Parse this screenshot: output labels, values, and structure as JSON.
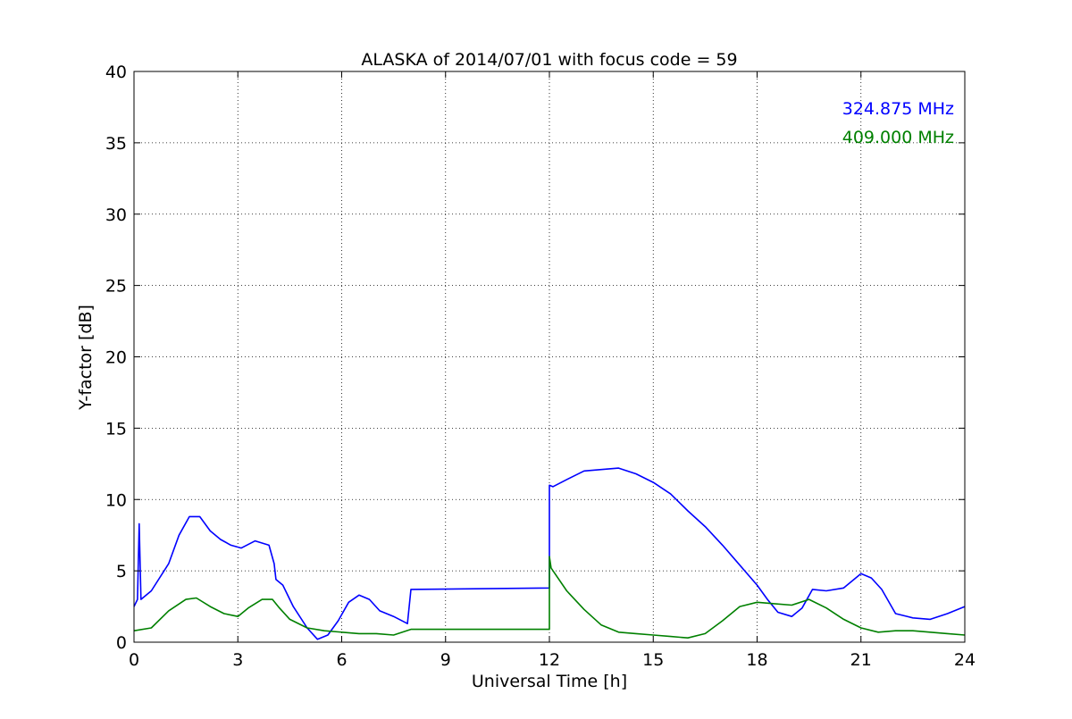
{
  "chart_data": {
    "type": "line",
    "title": "ALASKA of 2014/07/01 with focus code = 59",
    "xlabel": "Universal Time [h]",
    "ylabel": "Y-factor [dB]",
    "xlim": [
      0,
      24
    ],
    "ylim": [
      0,
      40
    ],
    "xticks": [
      "0",
      "3",
      "6",
      "9",
      "12",
      "15",
      "18",
      "21",
      "24"
    ],
    "yticks": [
      "0",
      "5",
      "10",
      "15",
      "20",
      "25",
      "30",
      "35",
      "40"
    ],
    "grid": true,
    "legend_position": "top-right",
    "series": [
      {
        "name": "324.875 MHz",
        "color": "#0000ff",
        "x": [
          0,
          0.1,
          0.15,
          0.2,
          0.5,
          1.0,
          1.3,
          1.6,
          1.9,
          2.2,
          2.5,
          2.8,
          3.1,
          3.5,
          3.9,
          4.05,
          4.1,
          4.3,
          4.6,
          5.0,
          5.3,
          5.6,
          5.9,
          6.2,
          6.5,
          6.8,
          7.1,
          7.5,
          7.9,
          8.0,
          12.0,
          12.0,
          12.1,
          12.5,
          13.0,
          13.5,
          14.0,
          14.5,
          15.0,
          15.5,
          16.0,
          16.5,
          17.0,
          17.5,
          18.0,
          18.3,
          18.6,
          19.0,
          19.3,
          19.6,
          20.0,
          20.5,
          21.0,
          21.3,
          21.6,
          22.0,
          22.5,
          23.0,
          23.5,
          24.0
        ],
        "y": [
          2.5,
          3.0,
          8.3,
          3.0,
          3.6,
          5.5,
          7.5,
          8.8,
          8.8,
          7.8,
          7.2,
          6.8,
          6.6,
          7.1,
          6.8,
          5.5,
          4.4,
          4.0,
          2.5,
          1.0,
          0.2,
          0.5,
          1.5,
          2.8,
          3.3,
          3.0,
          2.2,
          1.8,
          1.3,
          3.7,
          3.8,
          11.0,
          10.9,
          11.4,
          12.0,
          12.1,
          12.2,
          11.8,
          11.2,
          10.4,
          9.2,
          8.1,
          6.8,
          5.4,
          4.0,
          3.0,
          2.1,
          1.8,
          2.4,
          3.7,
          3.6,
          3.8,
          4.8,
          4.5,
          3.7,
          2.0,
          1.7,
          1.6,
          2.0,
          2.5
        ]
      },
      {
        "name": "409.000 MHz",
        "color": "#008000",
        "x": [
          0,
          0.5,
          1.0,
          1.5,
          1.8,
          2.2,
          2.6,
          3.0,
          3.3,
          3.7,
          4.0,
          4.2,
          4.5,
          5.0,
          5.5,
          6.0,
          6.5,
          7.0,
          7.5,
          8.0,
          12.0,
          12.0,
          12.05,
          12.5,
          13.0,
          13.5,
          14.0,
          14.5,
          15.0,
          15.5,
          16.0,
          16.5,
          17.0,
          17.5,
          18.0,
          18.5,
          19.0,
          19.5,
          20.0,
          20.5,
          21.0,
          21.5,
          22.0,
          22.5,
          23.0,
          23.5,
          24.0
        ],
        "y": [
          0.8,
          1.0,
          2.2,
          3.0,
          3.1,
          2.5,
          2.0,
          1.8,
          2.4,
          3.0,
          3.0,
          2.4,
          1.6,
          1.0,
          0.8,
          0.7,
          0.6,
          0.6,
          0.5,
          0.9,
          0.9,
          6.0,
          5.2,
          3.6,
          2.3,
          1.2,
          0.7,
          0.6,
          0.5,
          0.4,
          0.3,
          0.6,
          1.5,
          2.5,
          2.8,
          2.7,
          2.6,
          3.0,
          2.4,
          1.6,
          1.0,
          0.7,
          0.8,
          0.8,
          0.7,
          0.6,
          0.5
        ]
      }
    ]
  }
}
